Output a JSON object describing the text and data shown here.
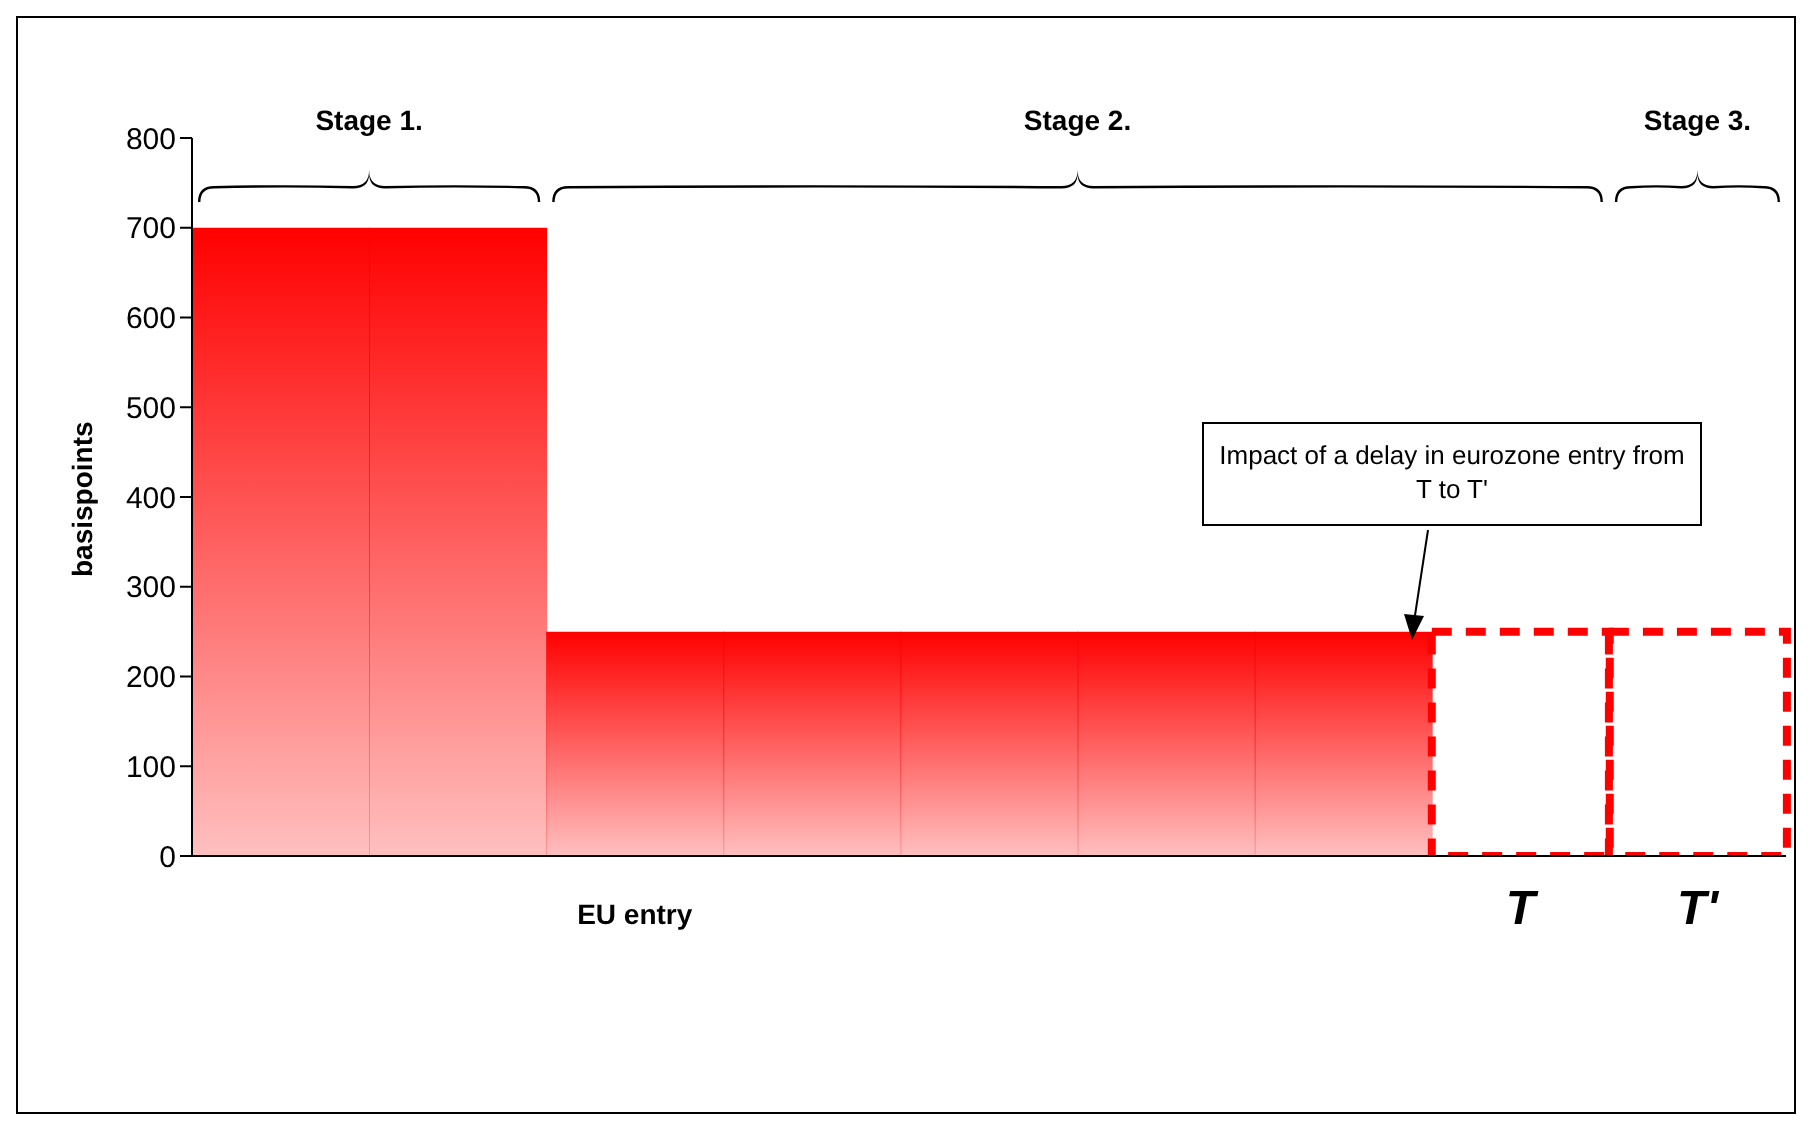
{
  "chart_data": {
    "type": "bar",
    "ylabel": "basispoints",
    "categories": [
      null,
      null,
      "EU entry",
      null,
      null,
      null,
      null,
      "T",
      "T'"
    ],
    "ylim": [
      0,
      800
    ],
    "yticks": [
      0,
      100,
      200,
      300,
      400,
      500,
      600,
      700,
      800
    ],
    "series": [
      {
        "color": "#ff0000",
        "values": [
          700,
          700,
          250,
          250,
          250,
          250,
          250,
          null,
          null
        ]
      },
      {
        "color": "#ff0000",
        "line_style": "dashed",
        "values": [
          null,
          null,
          null,
          null,
          null,
          null,
          null,
          250,
          250
        ]
      }
    ],
    "annotations": [
      "Stage 1.",
      "Stage 2.",
      "Stage 3.",
      "Impact of a delay in eurozone entry from T to T'"
    ]
  }
}
